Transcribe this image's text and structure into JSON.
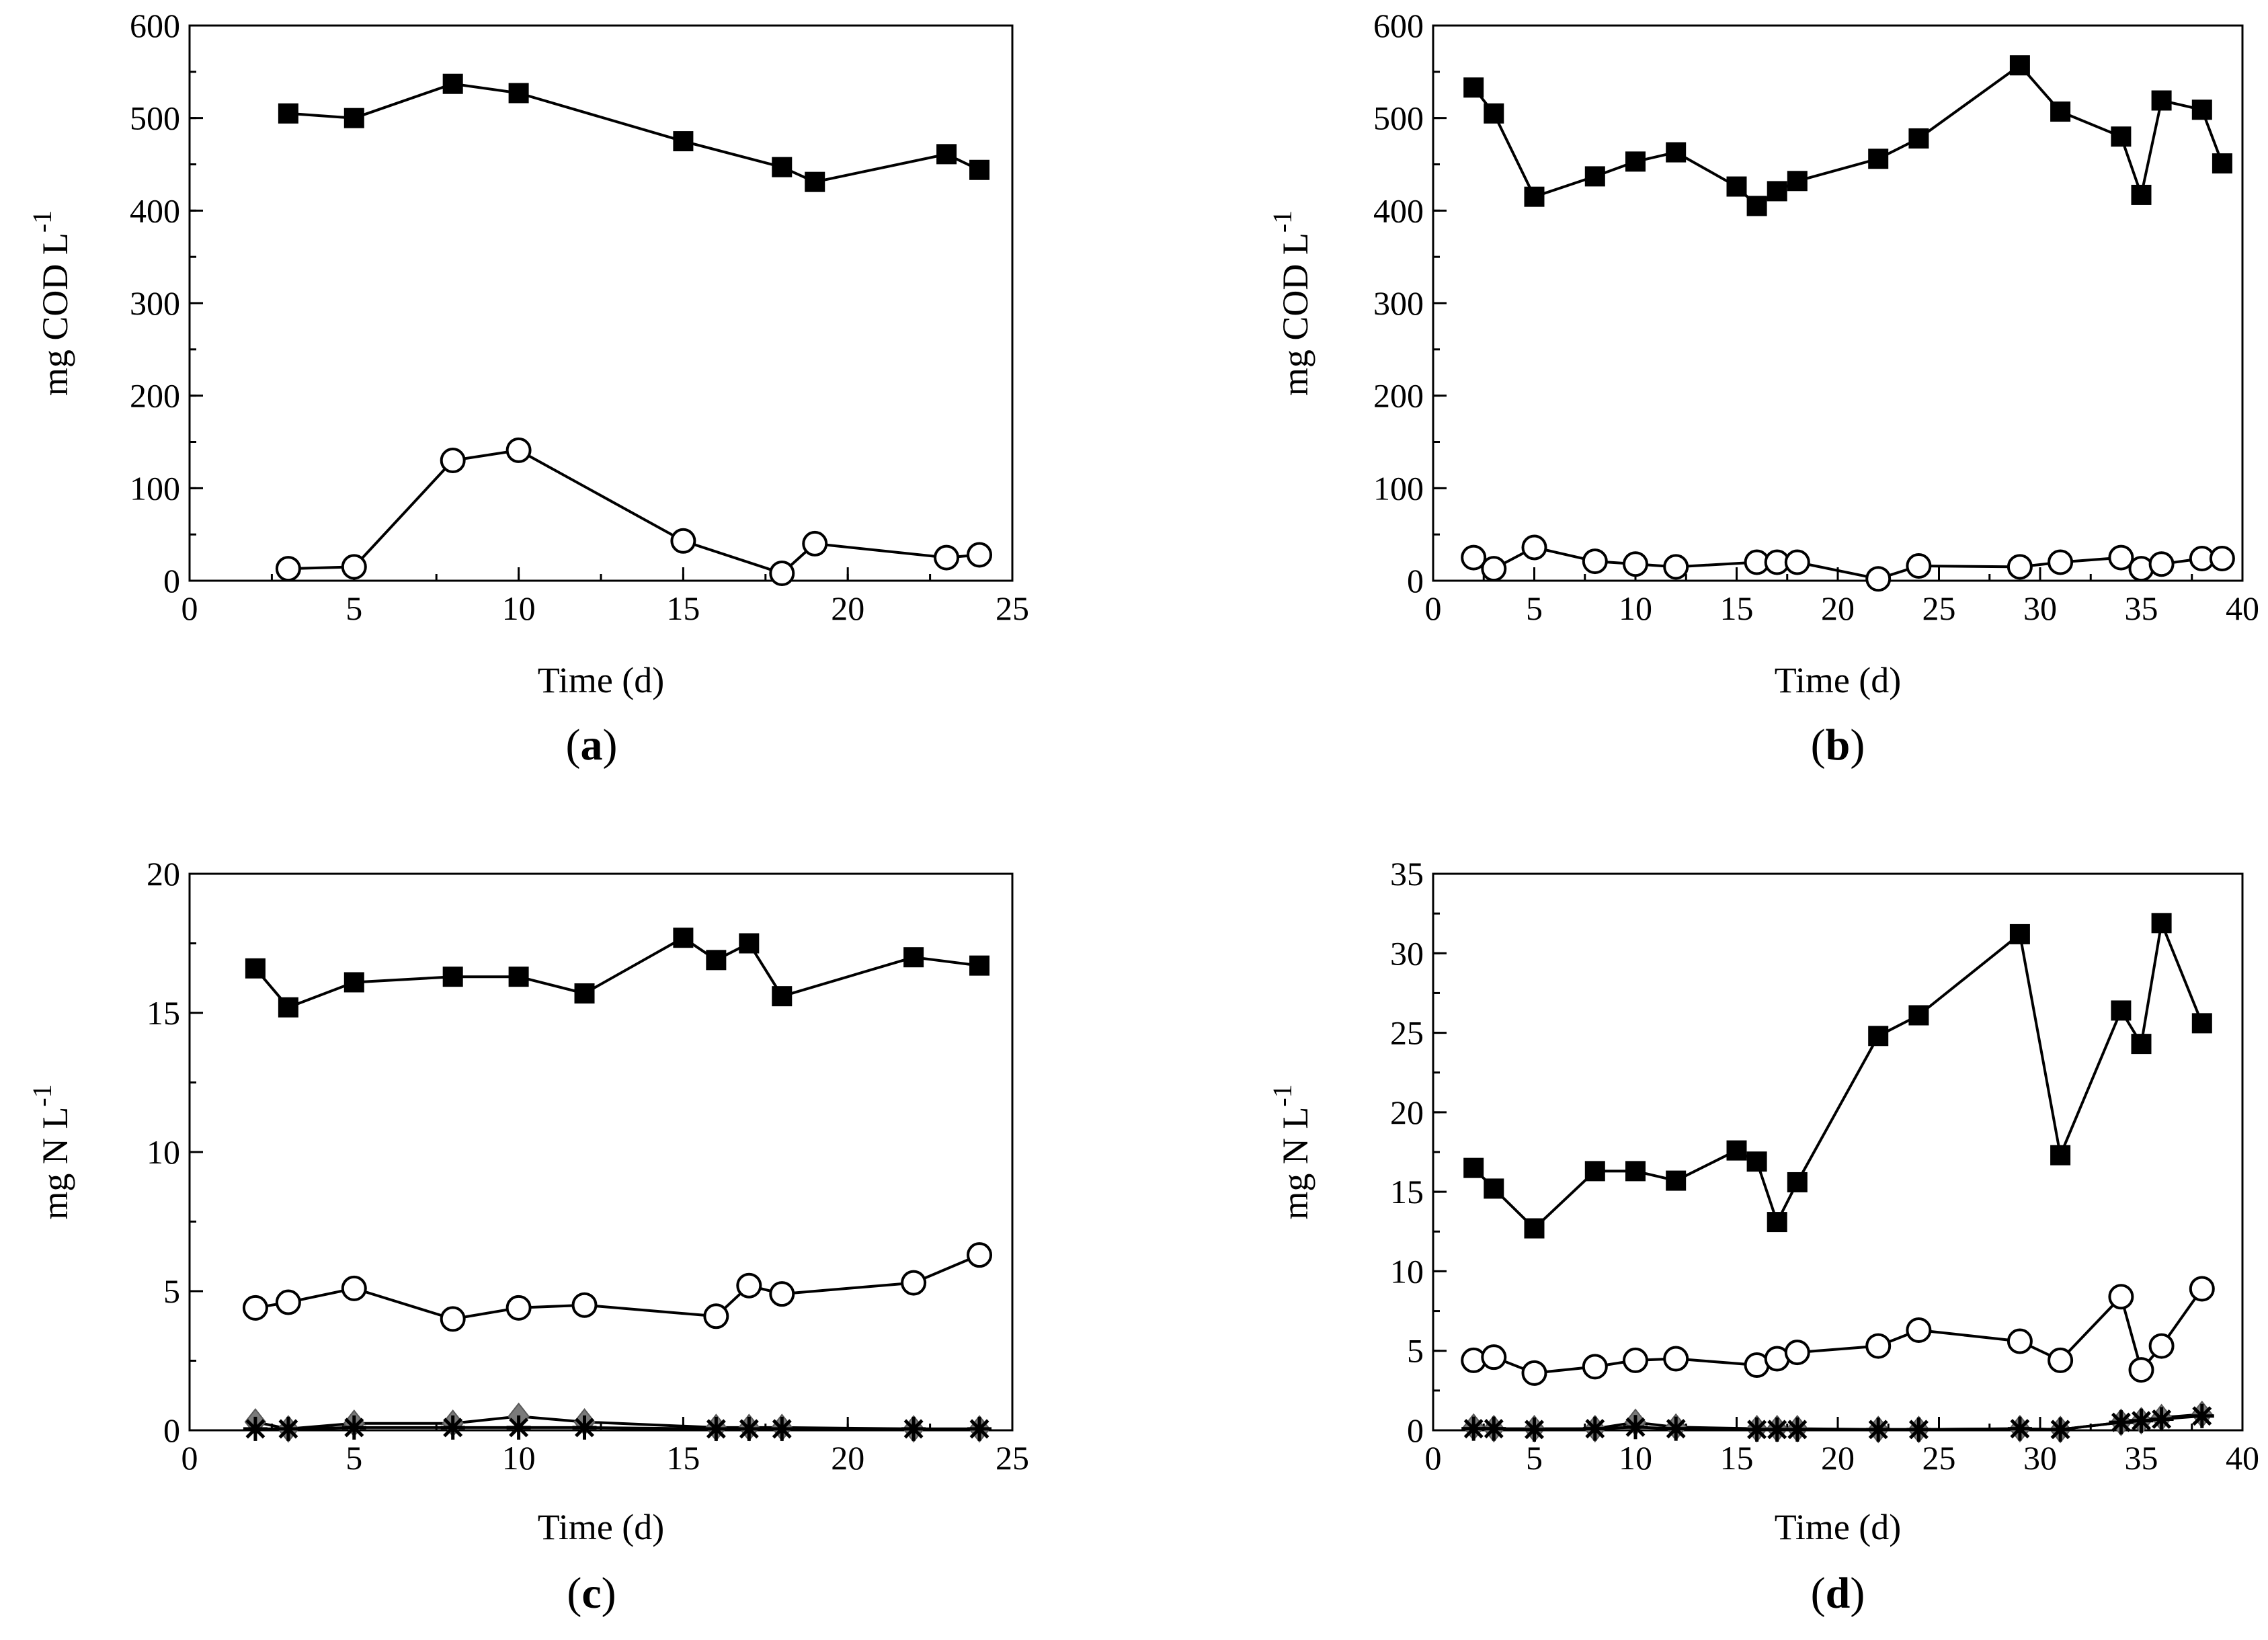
{
  "chart_data": [
    {
      "type": "line",
      "panel_label": "a",
      "xlabel": "Time (d)",
      "ylabel": "mg COD L",
      "ylabel_superscript": "-1",
      "xlim": [
        0,
        25
      ],
      "ylim": [
        0,
        600
      ],
      "xticks": [
        0,
        5,
        10,
        15,
        20,
        25
      ],
      "yticks": [
        0,
        100,
        200,
        300,
        400,
        500,
        600
      ],
      "x_minor_step": 2.5,
      "y_minor_step": 50,
      "xtick_labels": [
        "0",
        "5",
        "10",
        "15",
        "20",
        "25"
      ],
      "ytick_labels": [
        "0",
        "100",
        "200",
        "300",
        "400",
        "500",
        "600"
      ],
      "series": [
        {
          "name": "filled-square",
          "marker": "square-filled",
          "x": [
            3,
            5,
            8,
            10,
            15,
            18,
            19,
            23,
            24
          ],
          "values": [
            505,
            500,
            537,
            527,
            475,
            447,
            431,
            461,
            444
          ]
        },
        {
          "name": "open-circle",
          "marker": "circle-open",
          "x": [
            3,
            5,
            8,
            10,
            15,
            18,
            19,
            23,
            24
          ],
          "values": [
            13,
            15,
            130,
            141,
            43,
            8,
            40,
            25,
            28
          ]
        }
      ]
    },
    {
      "type": "line",
      "panel_label": "b",
      "xlabel": "Time (d)",
      "ylabel": "mg COD L",
      "ylabel_superscript": "-1",
      "xlim": [
        0,
        40
      ],
      "ylim": [
        0,
        600
      ],
      "xticks": [
        0,
        5,
        10,
        15,
        20,
        25,
        30,
        35,
        40
      ],
      "yticks": [
        0,
        100,
        200,
        300,
        400,
        500,
        600
      ],
      "x_minor_step": 2.5,
      "y_minor_step": 50,
      "xtick_labels": [
        "0",
        "5",
        "10",
        "15",
        "20",
        "25",
        "30",
        "35",
        "40"
      ],
      "ytick_labels": [
        "0",
        "100",
        "200",
        "300",
        "400",
        "500",
        "600"
      ],
      "series": [
        {
          "name": "filled-square",
          "marker": "square-filled",
          "x": [
            2,
            3,
            5,
            8,
            10,
            12,
            15,
            16,
            17,
            18,
            22,
            24,
            29,
            31,
            34,
            35,
            36,
            38,
            39
          ],
          "values": [
            533,
            505,
            415,
            437,
            453,
            463,
            426,
            405,
            421,
            432,
            456,
            478,
            557,
            507,
            480,
            417,
            519,
            509,
            451
          ]
        },
        {
          "name": "open-circle",
          "marker": "circle-open",
          "x": [
            2,
            3,
            5,
            8,
            10,
            12,
            16,
            17,
            18,
            22,
            24,
            29,
            31,
            34,
            35,
            36,
            38,
            39
          ],
          "values": [
            25,
            13,
            36,
            21,
            18,
            15,
            20,
            20,
            20,
            2,
            16,
            15,
            20,
            25,
            13,
            18,
            24,
            24
          ]
        }
      ]
    },
    {
      "type": "line",
      "panel_label": "c",
      "xlabel": "Time (d)",
      "ylabel": "mg N L",
      "ylabel_superscript": "-1",
      "xlim": [
        0,
        25
      ],
      "ylim": [
        0,
        20
      ],
      "xticks": [
        0,
        5,
        10,
        15,
        20,
        25
      ],
      "yticks": [
        0,
        5,
        10,
        15,
        20
      ],
      "x_minor_step": 2.5,
      "y_minor_step": 2.5,
      "xtick_labels": [
        "0",
        "5",
        "10",
        "15",
        "20",
        "25"
      ],
      "ytick_labels": [
        "0",
        "5",
        "10",
        "15",
        "20"
      ],
      "series": [
        {
          "name": "filled-square",
          "marker": "square-filled",
          "x": [
            2,
            3,
            5,
            8,
            10,
            12,
            15,
            16,
            17,
            18,
            22,
            24
          ],
          "values": [
            16.6,
            15.2,
            16.1,
            16.3,
            16.3,
            15.7,
            17.7,
            16.9,
            17.5,
            15.6,
            17.0,
            16.7
          ]
        },
        {
          "name": "open-circle",
          "marker": "circle-open",
          "x": [
            2,
            3,
            5,
            8,
            10,
            12,
            16,
            17,
            18,
            22,
            24
          ],
          "values": [
            4.4,
            4.6,
            5.1,
            4.0,
            4.4,
            4.5,
            4.1,
            5.2,
            4.9,
            5.3,
            6.3
          ]
        },
        {
          "name": "grey-diamond",
          "marker": "diamond-grey",
          "x": [
            2,
            3,
            5,
            8,
            10,
            12,
            16,
            17,
            18,
            22,
            24
          ],
          "values": [
            0.3,
            0.05,
            0.25,
            0.25,
            0.5,
            0.3,
            0.1,
            0.1,
            0.1,
            0.05,
            0.05
          ]
        },
        {
          "name": "star",
          "marker": "star",
          "x": [
            2,
            3,
            5,
            8,
            10,
            12,
            16,
            17,
            18,
            22,
            24
          ],
          "values": [
            0.05,
            0.05,
            0.1,
            0.1,
            0.1,
            0.1,
            0.05,
            0.05,
            0.05,
            0.05,
            0.05
          ]
        }
      ]
    },
    {
      "type": "line",
      "panel_label": "d",
      "xlabel": "Time (d)",
      "ylabel": "mg N L",
      "ylabel_superscript": "-1",
      "xlim": [
        0,
        40
      ],
      "ylim": [
        0,
        35
      ],
      "xticks": [
        0,
        5,
        10,
        15,
        20,
        25,
        30,
        35,
        40
      ],
      "yticks": [
        0,
        5,
        10,
        15,
        20,
        25,
        30,
        35
      ],
      "x_minor_step": 2.5,
      "y_minor_step": 2.5,
      "xtick_labels": [
        "0",
        "5",
        "10",
        "15",
        "20",
        "25",
        "30",
        "35",
        "40"
      ],
      "ytick_labels": [
        "0",
        "5",
        "10",
        "15",
        "20",
        "25",
        "30",
        "35"
      ],
      "series": [
        {
          "name": "filled-square",
          "marker": "square-filled",
          "x": [
            2,
            3,
            5,
            8,
            10,
            12,
            15,
            16,
            17,
            18,
            22,
            24,
            29,
            31,
            34,
            35,
            36,
            38
          ],
          "values": [
            16.5,
            15.2,
            12.7,
            16.3,
            16.3,
            15.7,
            17.6,
            16.9,
            13.1,
            15.6,
            24.8,
            26.1,
            31.2,
            17.3,
            26.4,
            24.3,
            31.9,
            25.6
          ]
        },
        {
          "name": "open-circle",
          "marker": "circle-open",
          "x": [
            2,
            3,
            5,
            8,
            10,
            12,
            16,
            17,
            18,
            22,
            24,
            29,
            31,
            34,
            35,
            36,
            38
          ],
          "values": [
            4.4,
            4.6,
            3.6,
            4.0,
            4.4,
            4.5,
            4.1,
            4.5,
            4.9,
            5.3,
            6.3,
            5.6,
            4.4,
            8.4,
            3.8,
            5.3,
            8.9
          ]
        },
        {
          "name": "grey-diamond",
          "marker": "diamond-grey",
          "x": [
            2,
            3,
            5,
            8,
            10,
            12,
            16,
            17,
            18,
            22,
            24,
            29,
            31,
            34,
            35,
            36,
            38
          ],
          "values": [
            0.2,
            0.1,
            0.1,
            0.1,
            0.5,
            0.2,
            0.1,
            0.1,
            0.1,
            0.05,
            0.05,
            0.1,
            0.05,
            0.5,
            0.6,
            0.8,
            1.0
          ]
        },
        {
          "name": "star",
          "marker": "star",
          "x": [
            2,
            3,
            5,
            8,
            10,
            12,
            16,
            17,
            18,
            22,
            24,
            29,
            31,
            34,
            35,
            36,
            38
          ],
          "values": [
            0.1,
            0.1,
            0.05,
            0.1,
            0.2,
            0.1,
            0.05,
            0.05,
            0.05,
            0.05,
            0.05,
            0.1,
            0.05,
            0.5,
            0.6,
            0.7,
            0.9
          ]
        }
      ]
    }
  ]
}
